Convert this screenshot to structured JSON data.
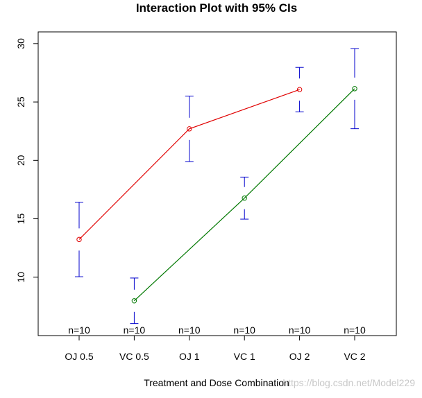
{
  "chart_data": {
    "type": "line",
    "title": "Interaction Plot with 95% CIs",
    "xlabel": "Treatment and Dose Combination",
    "ylabel": "",
    "categories": [
      "OJ 0.5",
      "VC 0.5",
      "OJ 1",
      "VC 1",
      "OJ 2",
      "VC 2"
    ],
    "ylim": [
      5,
      31
    ],
    "yticks": [
      10,
      15,
      20,
      25,
      30
    ],
    "n_labels": [
      "n=10",
      "n=10",
      "n=10",
      "n=10",
      "n=10",
      "n=10"
    ],
    "means": [
      13.23,
      7.98,
      22.7,
      16.77,
      26.06,
      26.14
    ],
    "ci_lower": [
      10.04,
      6.03,
      19.9,
      14.97,
      24.16,
      22.71
    ],
    "ci_upper": [
      16.42,
      9.93,
      25.5,
      18.57,
      27.96,
      29.57
    ],
    "series": [
      {
        "name": "OJ",
        "color": "#e00000",
        "indices": [
          0,
          2,
          4
        ]
      },
      {
        "name": "VC",
        "color": "#007800",
        "indices": [
          1,
          3,
          5
        ]
      }
    ],
    "error_bar_color": "#0000cc"
  },
  "watermark": "https://blog.csdn.net/Model229"
}
